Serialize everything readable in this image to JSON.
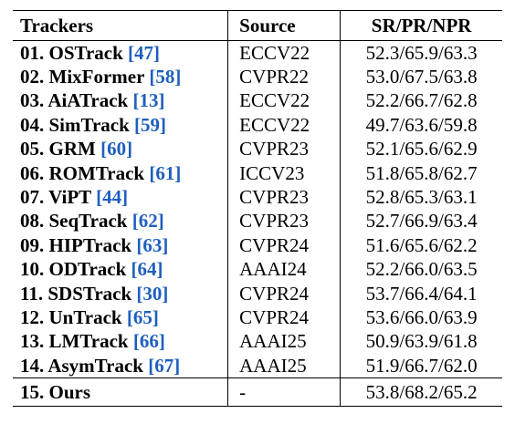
{
  "table": {
    "headers": {
      "trackers": "Trackers",
      "source": "Source",
      "metric": "SR/PR/NPR"
    },
    "rows": [
      {
        "num": "01.",
        "name": "OSTrack",
        "cite": "47",
        "source": "ECCV22",
        "metric": "52.3/65.9/63.3"
      },
      {
        "num": "02.",
        "name": "MixFormer",
        "cite": "58",
        "source": "CVPR22",
        "metric": "53.0/67.5/63.8"
      },
      {
        "num": "03.",
        "name": "AiATrack",
        "cite": "13",
        "source": "ECCV22",
        "metric": "52.2/66.7/62.8"
      },
      {
        "num": "04.",
        "name": "SimTrack",
        "cite": "59",
        "source": "ECCV22",
        "metric": "49.7/63.6/59.8"
      },
      {
        "num": "05.",
        "name": "GRM",
        "cite": "60",
        "source": "CVPR23",
        "metric": "52.1/65.6/62.9"
      },
      {
        "num": "06.",
        "name": "ROMTrack",
        "cite": "61",
        "source": "ICCV23",
        "metric": "51.8/65.8/62.7"
      },
      {
        "num": "07.",
        "name": "ViPT",
        "cite": "44",
        "source": "CVPR23",
        "metric": "52.8/65.3/63.1"
      },
      {
        "num": "08.",
        "name": "SeqTrack",
        "cite": "62",
        "source": "CVPR23",
        "metric": "52.7/66.9/63.4"
      },
      {
        "num": "09.",
        "name": "HIPTrack",
        "cite": "63",
        "source": "CVPR24",
        "metric": "51.6/65.6/62.2"
      },
      {
        "num": "10.",
        "name": "ODTrack",
        "cite": "64",
        "source": "AAAI24",
        "metric": "52.2/66.0/63.5"
      },
      {
        "num": "11.",
        "name": "SDSTrack",
        "cite": "30",
        "source": "CVPR24",
        "metric": "53.7/66.4/64.1"
      },
      {
        "num": "12.",
        "name": "UnTrack",
        "cite": "65",
        "source": "CVPR24",
        "metric": "53.6/66.0/63.9"
      },
      {
        "num": "13.",
        "name": "LMTrack",
        "cite": "66",
        "source": "AAAI25",
        "metric": "50.9/63.9/61.8"
      },
      {
        "num": "14.",
        "name": "AsymTrack",
        "cite": "67",
        "source": "AAAI25",
        "metric": "51.9/66.7/62.0"
      }
    ],
    "ours": {
      "num": "15.",
      "name": "Ours",
      "source": "-",
      "metric": "53.8/68.2/65.2"
    }
  },
  "colors": {
    "citation": "#1f5fbf",
    "text": "#000000",
    "background": "#ffffff"
  }
}
